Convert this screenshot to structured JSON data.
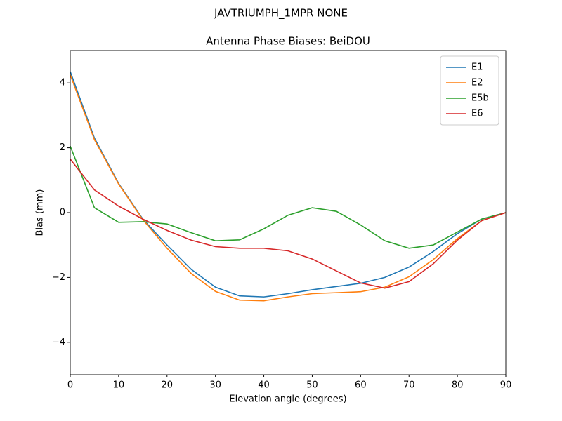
{
  "chart_data": {
    "type": "line",
    "suptitle": "JAVTRIUMPH_1MPR NONE",
    "title": "Antenna Phase Biases: BeiDOU",
    "x_label": "Elevation angle (degrees)",
    "y_label": "Bias (mm)",
    "x": [
      0,
      5,
      10,
      15,
      20,
      25,
      30,
      35,
      40,
      45,
      50,
      55,
      60,
      65,
      70,
      75,
      80,
      85,
      90
    ],
    "series": [
      {
        "name": "E1",
        "color": "#1f77b4",
        "values": [
          4.35,
          2.3,
          0.9,
          -0.2,
          -1.0,
          -1.75,
          -2.3,
          -2.57,
          -2.6,
          -2.5,
          -2.38,
          -2.28,
          -2.18,
          -2.0,
          -1.68,
          -1.2,
          -0.65,
          -0.2,
          0
        ]
      },
      {
        "name": "E2",
        "color": "#ff7f0e",
        "values": [
          4.25,
          2.25,
          0.88,
          -0.22,
          -1.1,
          -1.88,
          -2.43,
          -2.7,
          -2.72,
          -2.6,
          -2.5,
          -2.47,
          -2.44,
          -2.3,
          -1.98,
          -1.45,
          -0.8,
          -0.25,
          0
        ]
      },
      {
        "name": "E5b",
        "color": "#2ca02c",
        "values": [
          2.05,
          0.15,
          -0.3,
          -0.28,
          -0.35,
          -0.62,
          -0.87,
          -0.84,
          -0.5,
          -0.08,
          0.15,
          0.04,
          -0.38,
          -0.87,
          -1.1,
          -1.0,
          -0.6,
          -0.2,
          0
        ]
      },
      {
        "name": "E6",
        "color": "#d62728",
        "values": [
          1.65,
          0.7,
          0.2,
          -0.2,
          -0.55,
          -0.85,
          -1.05,
          -1.1,
          -1.1,
          -1.18,
          -1.43,
          -1.8,
          -2.17,
          -2.33,
          -2.13,
          -1.58,
          -0.85,
          -0.25,
          0
        ]
      }
    ],
    "xlim": [
      0,
      90
    ],
    "ylim": [
      -5,
      5
    ],
    "xticks": [
      0,
      10,
      20,
      30,
      40,
      50,
      60,
      70,
      80,
      90
    ],
    "yticks": [
      {
        "value": -4,
        "label": "−4"
      },
      {
        "value": -2,
        "label": "−2"
      },
      0,
      2,
      4
    ],
    "grid": false,
    "legend": "upper right"
  }
}
